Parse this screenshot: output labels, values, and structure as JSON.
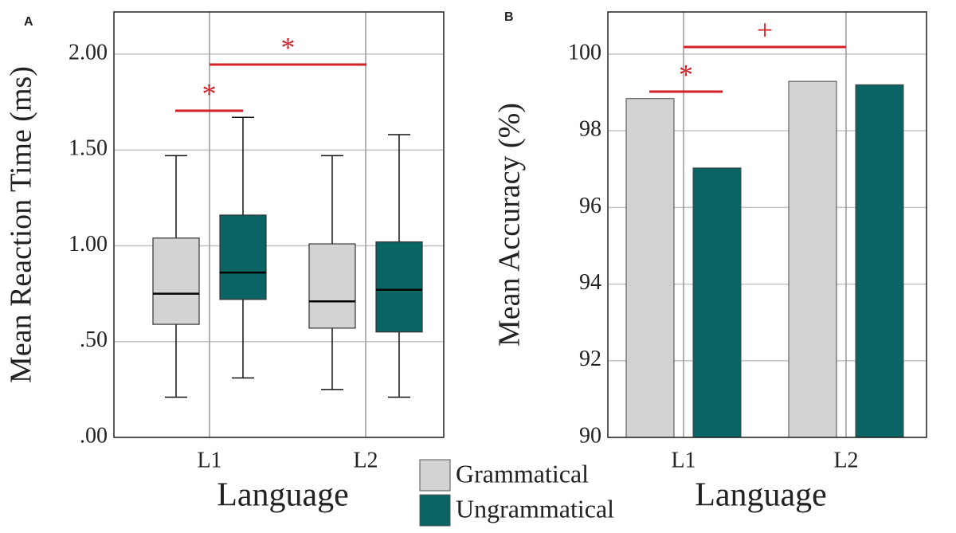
{
  "chart_data": [
    {
      "type": "box",
      "panel_label": "A",
      "y_label": "Mean Reaction Time (ms)",
      "x_label": "Language",
      "categories": [
        "L1",
        "L2"
      ],
      "series": [
        {
          "name": "Grammatical",
          "color": "#d3d3d3",
          "values": [
            [
              0.21,
              0.59,
              0.75,
              1.04,
              1.47
            ],
            [
              0.25,
              0.57,
              0.71,
              1.01,
              1.47
            ]
          ]
        },
        {
          "name": "Ungrammatical",
          "color": "#0b6464",
          "values": [
            [
              0.31,
              0.72,
              0.86,
              1.16,
              1.67
            ],
            [
              0.21,
              0.55,
              0.77,
              1.02,
              1.58
            ]
          ]
        }
      ],
      "ylim": [
        0,
        2.22
      ],
      "yticks": [
        {
          "value": 0,
          "label": ".00"
        },
        {
          "value": 0.5,
          "label": ".50"
        },
        {
          "value": 1,
          "label": "1.00"
        },
        {
          "value": 1.5,
          "label": "1.50"
        },
        {
          "value": 2,
          "label": "2.00"
        }
      ],
      "grid": true,
      "legend": "bottom",
      "annotation_color": "#d42027",
      "annotations": [
        "*",
        "*"
      ]
    },
    {
      "type": "bar",
      "panel_label": "B",
      "y_label": "Mean Accuracy (%)",
      "x_label": "Language",
      "categories": [
        "L1",
        "L2"
      ],
      "series": [
        {
          "color": "#d3d3d3",
          "values": [
            98.84,
            99.29
          ]
        },
        {
          "color": "#0b6464",
          "values": [
            97.03,
            99.2
          ]
        }
      ],
      "ylim": [
        90,
        101.1
      ],
      "yticks": [
        90,
        92,
        94,
        96,
        98,
        100
      ],
      "grid": true,
      "annotation_color": "#d42027",
      "annotations": [
        "*",
        "+"
      ]
    }
  ]
}
